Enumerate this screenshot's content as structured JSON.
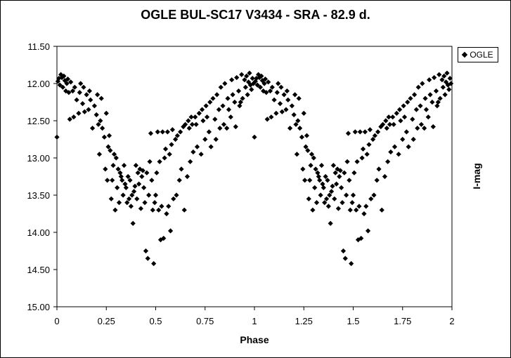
{
  "chart_data": {
    "type": "scatter",
    "title": "OGLE BUL-SC17  V3434 - SRA - 82.9 d.",
    "xlabel": "Phase",
    "ylabel": "I-mag",
    "xlim": [
      0,
      2
    ],
    "ylim": [
      11.5,
      15.0
    ],
    "y_inverted": true,
    "x_ticks": [
      "0",
      "0.25",
      "0.5",
      "0.75",
      "1",
      "1.25",
      "1.5",
      "1.75",
      "2"
    ],
    "y_ticks": [
      "11.50",
      "12.00",
      "12.50",
      "13.00",
      "13.50",
      "14.00",
      "14.50",
      "15.00"
    ],
    "grid": false,
    "legend_position": "top-right",
    "marker": "diamond",
    "marker_color": "#000000",
    "series": [
      {
        "name": "OGLE",
        "points": [
          [
            0.0,
            12.72
          ],
          [
            0.005,
            11.97
          ],
          [
            0.01,
            11.93
          ],
          [
            0.015,
            12.02
          ],
          [
            0.02,
            11.88
          ],
          [
            0.025,
            11.92
          ],
          [
            0.03,
            12.05
          ],
          [
            0.035,
            11.9
          ],
          [
            0.04,
            11.96
          ],
          [
            0.045,
            12.1
          ],
          [
            0.05,
            12.0
          ],
          [
            0.055,
            11.94
          ],
          [
            0.06,
            12.12
          ],
          [
            0.065,
            12.48
          ],
          [
            0.07,
            11.98
          ],
          [
            0.08,
            12.1
          ],
          [
            0.085,
            12.45
          ],
          [
            0.09,
            12.05
          ],
          [
            0.1,
            12.22
          ],
          [
            0.11,
            12.4
          ],
          [
            0.115,
            12.12
          ],
          [
            0.12,
            12.0
          ],
          [
            0.13,
            12.27
          ],
          [
            0.135,
            12.05
          ],
          [
            0.14,
            12.38
          ],
          [
            0.15,
            12.15
          ],
          [
            0.16,
            12.35
          ],
          [
            0.165,
            12.1
          ],
          [
            0.17,
            12.22
          ],
          [
            0.18,
            12.6
          ],
          [
            0.19,
            12.3
          ],
          [
            0.2,
            12.42
          ],
          [
            0.205,
            12.15
          ],
          [
            0.21,
            12.55
          ],
          [
            0.215,
            12.95
          ],
          [
            0.22,
            12.5
          ],
          [
            0.225,
            12.2
          ],
          [
            0.23,
            12.6
          ],
          [
            0.24,
            12.72
          ],
          [
            0.245,
            13.15
          ],
          [
            0.25,
            12.4
          ],
          [
            0.255,
            13.3
          ],
          [
            0.26,
            12.85
          ],
          [
            0.265,
            12.7
          ],
          [
            0.27,
            12.9
          ],
          [
            0.275,
            13.55
          ],
          [
            0.28,
            13.3
          ],
          [
            0.285,
            13.1
          ],
          [
            0.29,
            12.95
          ],
          [
            0.295,
            13.7
          ],
          [
            0.3,
            13.0
          ],
          [
            0.305,
            13.4
          ],
          [
            0.31,
            13.15
          ],
          [
            0.315,
            13.6
          ],
          [
            0.32,
            13.2
          ],
          [
            0.325,
            13.25
          ],
          [
            0.33,
            13.3
          ],
          [
            0.335,
            13.5
          ],
          [
            0.34,
            13.1
          ],
          [
            0.345,
            13.35
          ],
          [
            0.35,
            13.4
          ],
          [
            0.355,
            13.6
          ],
          [
            0.36,
            13.25
          ],
          [
            0.365,
            13.55
          ],
          [
            0.37,
            13.3
          ],
          [
            0.375,
            13.65
          ],
          [
            0.38,
            13.5
          ],
          [
            0.385,
            13.88
          ],
          [
            0.39,
            13.45
          ],
          [
            0.395,
            13.38
          ],
          [
            0.4,
            13.1
          ],
          [
            0.405,
            13.55
          ],
          [
            0.41,
            13.2
          ],
          [
            0.415,
            13.35
          ],
          [
            0.42,
            13.15
          ],
          [
            0.425,
            13.68
          ],
          [
            0.43,
            13.25
          ],
          [
            0.435,
            13.17
          ],
          [
            0.44,
            13.4
          ],
          [
            0.445,
            13.6
          ],
          [
            0.45,
            14.25
          ],
          [
            0.455,
            13.2
          ],
          [
            0.46,
            14.35
          ],
          [
            0.465,
            13.5
          ],
          [
            0.47,
            13.05
          ],
          [
            0.475,
            12.67
          ],
          [
            0.48,
            13.3
          ],
          [
            0.485,
            13.7
          ],
          [
            0.49,
            14.42
          ],
          [
            0.495,
            13.6
          ],
          [
            0.5,
            13.5
          ],
          [
            0.505,
            13.2
          ],
          [
            0.51,
            12.65
          ],
          [
            0.515,
            13.7
          ],
          [
            0.52,
            13.05
          ],
          [
            0.525,
            14.1
          ],
          [
            0.53,
            13.65
          ],
          [
            0.535,
            12.65
          ],
          [
            0.54,
            14.08
          ],
          [
            0.545,
            13.0
          ],
          [
            0.55,
            12.88
          ],
          [
            0.555,
            13.75
          ],
          [
            0.56,
            12.65
          ],
          [
            0.565,
            13.65
          ],
          [
            0.57,
            12.95
          ],
          [
            0.575,
            13.98
          ],
          [
            0.58,
            12.82
          ],
          [
            0.585,
            12.62
          ],
          [
            0.59,
            13.55
          ],
          [
            0.6,
            12.75
          ],
          [
            0.605,
            13.5
          ],
          [
            0.61,
            12.7
          ],
          [
            0.62,
            13.3
          ],
          [
            0.625,
            12.65
          ],
          [
            0.63,
            13.15
          ],
          [
            0.64,
            12.58
          ],
          [
            0.645,
            13.7
          ],
          [
            0.65,
            12.55
          ],
          [
            0.66,
            13.25
          ],
          [
            0.665,
            12.5
          ],
          [
            0.67,
            12.6
          ],
          [
            0.675,
            13.05
          ],
          [
            0.68,
            12.45
          ],
          [
            0.685,
            12.55
          ],
          [
            0.69,
            12.92
          ],
          [
            0.7,
            12.45
          ],
          [
            0.705,
            12.55
          ],
          [
            0.71,
            12.85
          ],
          [
            0.72,
            12.4
          ],
          [
            0.73,
            12.95
          ],
          [
            0.735,
            12.35
          ],
          [
            0.74,
            12.5
          ],
          [
            0.75,
            12.75
          ],
          [
            0.755,
            12.3
          ],
          [
            0.76,
            12.45
          ],
          [
            0.77,
            12.65
          ],
          [
            0.775,
            12.25
          ],
          [
            0.78,
            12.85
          ],
          [
            0.79,
            12.2
          ],
          [
            0.8,
            12.48
          ],
          [
            0.805,
            12.75
          ],
          [
            0.81,
            12.15
          ],
          [
            0.82,
            12.35
          ],
          [
            0.825,
            12.6
          ],
          [
            0.83,
            12.05
          ],
          [
            0.84,
            12.3
          ],
          [
            0.845,
            12.55
          ],
          [
            0.85,
            12.0
          ],
          [
            0.86,
            12.6
          ],
          [
            0.865,
            12.2
          ],
          [
            0.87,
            12.35
          ],
          [
            0.88,
            12.45
          ],
          [
            0.885,
            11.95
          ],
          [
            0.89,
            12.15
          ],
          [
            0.9,
            12.25
          ],
          [
            0.905,
            12.58
          ],
          [
            0.91,
            11.92
          ],
          [
            0.92,
            12.1
          ],
          [
            0.925,
            12.3
          ],
          [
            0.93,
            12.25
          ],
          [
            0.935,
            11.88
          ],
          [
            0.94,
            12.2
          ],
          [
            0.95,
            11.95
          ],
          [
            0.955,
            12.05
          ],
          [
            0.96,
            11.9
          ],
          [
            0.965,
            12.15
          ],
          [
            0.97,
            11.98
          ],
          [
            0.975,
            11.86
          ],
          [
            0.98,
            12.02
          ],
          [
            0.985,
            12.08
          ],
          [
            0.99,
            11.93
          ],
          [
            0.995,
            12.0
          ]
        ]
      }
    ]
  },
  "legend": {
    "label": "OGLE"
  }
}
